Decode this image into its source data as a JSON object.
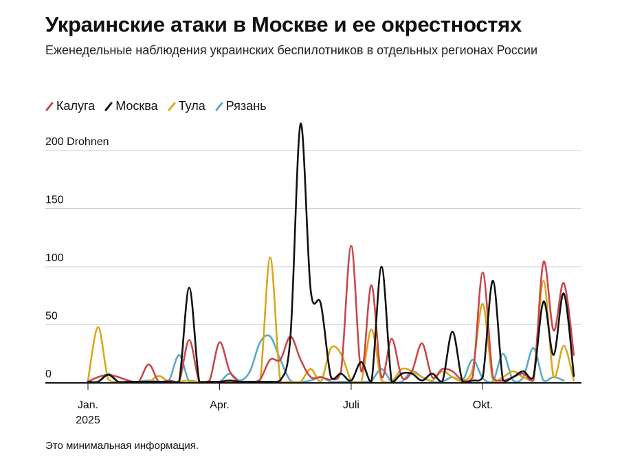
{
  "title": "Украинские атаки в Москве и ее окрестностях",
  "subtitle": "Еженедельные наблюдения украинских беспилотников в отдельных регионах России",
  "footnote": "Это минимальная информация.",
  "colors": {
    "Калуга": "#c9474a",
    "Москва": "#111111",
    "Тула": "#dba61a",
    "Рязань": "#5aa8c8",
    "grid": "#cccccc",
    "axis": "#111111"
  },
  "chart_data": {
    "type": "line",
    "ylim": [
      0,
      200
    ],
    "y_ticks": [
      {
        "value": 0,
        "label": "0"
      },
      {
        "value": 50,
        "label": "50"
      },
      {
        "value": 100,
        "label": "100"
      },
      {
        "value": 150,
        "label": "150"
      },
      {
        "value": 200,
        "label": "200 Drohnen"
      }
    ],
    "x_ticks": [
      {
        "week": 1,
        "label": "Jan.",
        "sublabel": "2025"
      },
      {
        "week": 14,
        "label": "Apr.",
        "sublabel": ""
      },
      {
        "week": 27,
        "label": "Juli",
        "sublabel": ""
      },
      {
        "week": 40,
        "label": "Okt.",
        "sublabel": ""
      }
    ],
    "x": [
      1,
      2,
      3,
      4,
      5,
      6,
      7,
      8,
      9,
      10,
      11,
      12,
      13,
      14,
      15,
      16,
      17,
      18,
      19,
      20,
      21,
      22,
      23,
      24,
      25,
      26,
      27,
      28,
      29,
      30,
      31,
      32,
      33,
      34,
      35,
      36,
      37,
      38,
      39,
      40,
      41,
      42,
      43,
      44,
      45,
      46,
      47,
      48,
      49,
      50,
      51,
      52,
      53,
      54,
      55
    ],
    "series": [
      {
        "name": "Калуга",
        "values": [
          1,
          5,
          7,
          5,
          2,
          1,
          16,
          1,
          2,
          1,
          37,
          1,
          2,
          35,
          10,
          1,
          1,
          3,
          20,
          20,
          40,
          20,
          5,
          5,
          3,
          10,
          118,
          10,
          84,
          5,
          38,
          5,
          10,
          34,
          5,
          12,
          10,
          2,
          5,
          95,
          5,
          2,
          5,
          8,
          2,
          104,
          45,
          86,
          24,
          null,
          null,
          null,
          null,
          null,
          null
        ]
      },
      {
        "name": "Москва",
        "values": [
          1,
          1,
          7,
          1,
          1,
          1,
          1,
          1,
          1,
          1,
          82,
          1,
          1,
          1,
          2,
          1,
          1,
          1,
          1,
          2,
          40,
          223,
          80,
          68,
          5,
          8,
          2,
          18,
          1,
          100,
          1,
          8,
          8,
          2,
          8,
          1,
          44,
          1,
          2,
          5,
          88,
          2,
          5,
          10,
          5,
          70,
          24,
          77,
          6,
          null,
          null,
          null,
          null,
          null,
          null
        ]
      },
      {
        "name": "Тула",
        "values": [
          2,
          48,
          3,
          1,
          1,
          1,
          1,
          6,
          1,
          1,
          2,
          1,
          1,
          1,
          1,
          1,
          1,
          1,
          108,
          1,
          1,
          1,
          12,
          1,
          30,
          25,
          2,
          1,
          46,
          2,
          1,
          12,
          10,
          5,
          2,
          10,
          5,
          2,
          12,
          68,
          2,
          5,
          10,
          5,
          5,
          88,
          5,
          32,
          2,
          null,
          null,
          null,
          null,
          null,
          null
        ]
      },
      {
        "name": "Рязань",
        "values": [
          1,
          1,
          8,
          1,
          1,
          1,
          2,
          1,
          2,
          24,
          1,
          1,
          1,
          1,
          8,
          2,
          10,
          35,
          40,
          20,
          2,
          1,
          2,
          5,
          1,
          1,
          1,
          1,
          2,
          12,
          1,
          1,
          10,
          5,
          1,
          1,
          5,
          2,
          20,
          4,
          1,
          25,
          2,
          5,
          30,
          2,
          5,
          2,
          null,
          null,
          null,
          null,
          null,
          null,
          null
        ]
      }
    ]
  }
}
